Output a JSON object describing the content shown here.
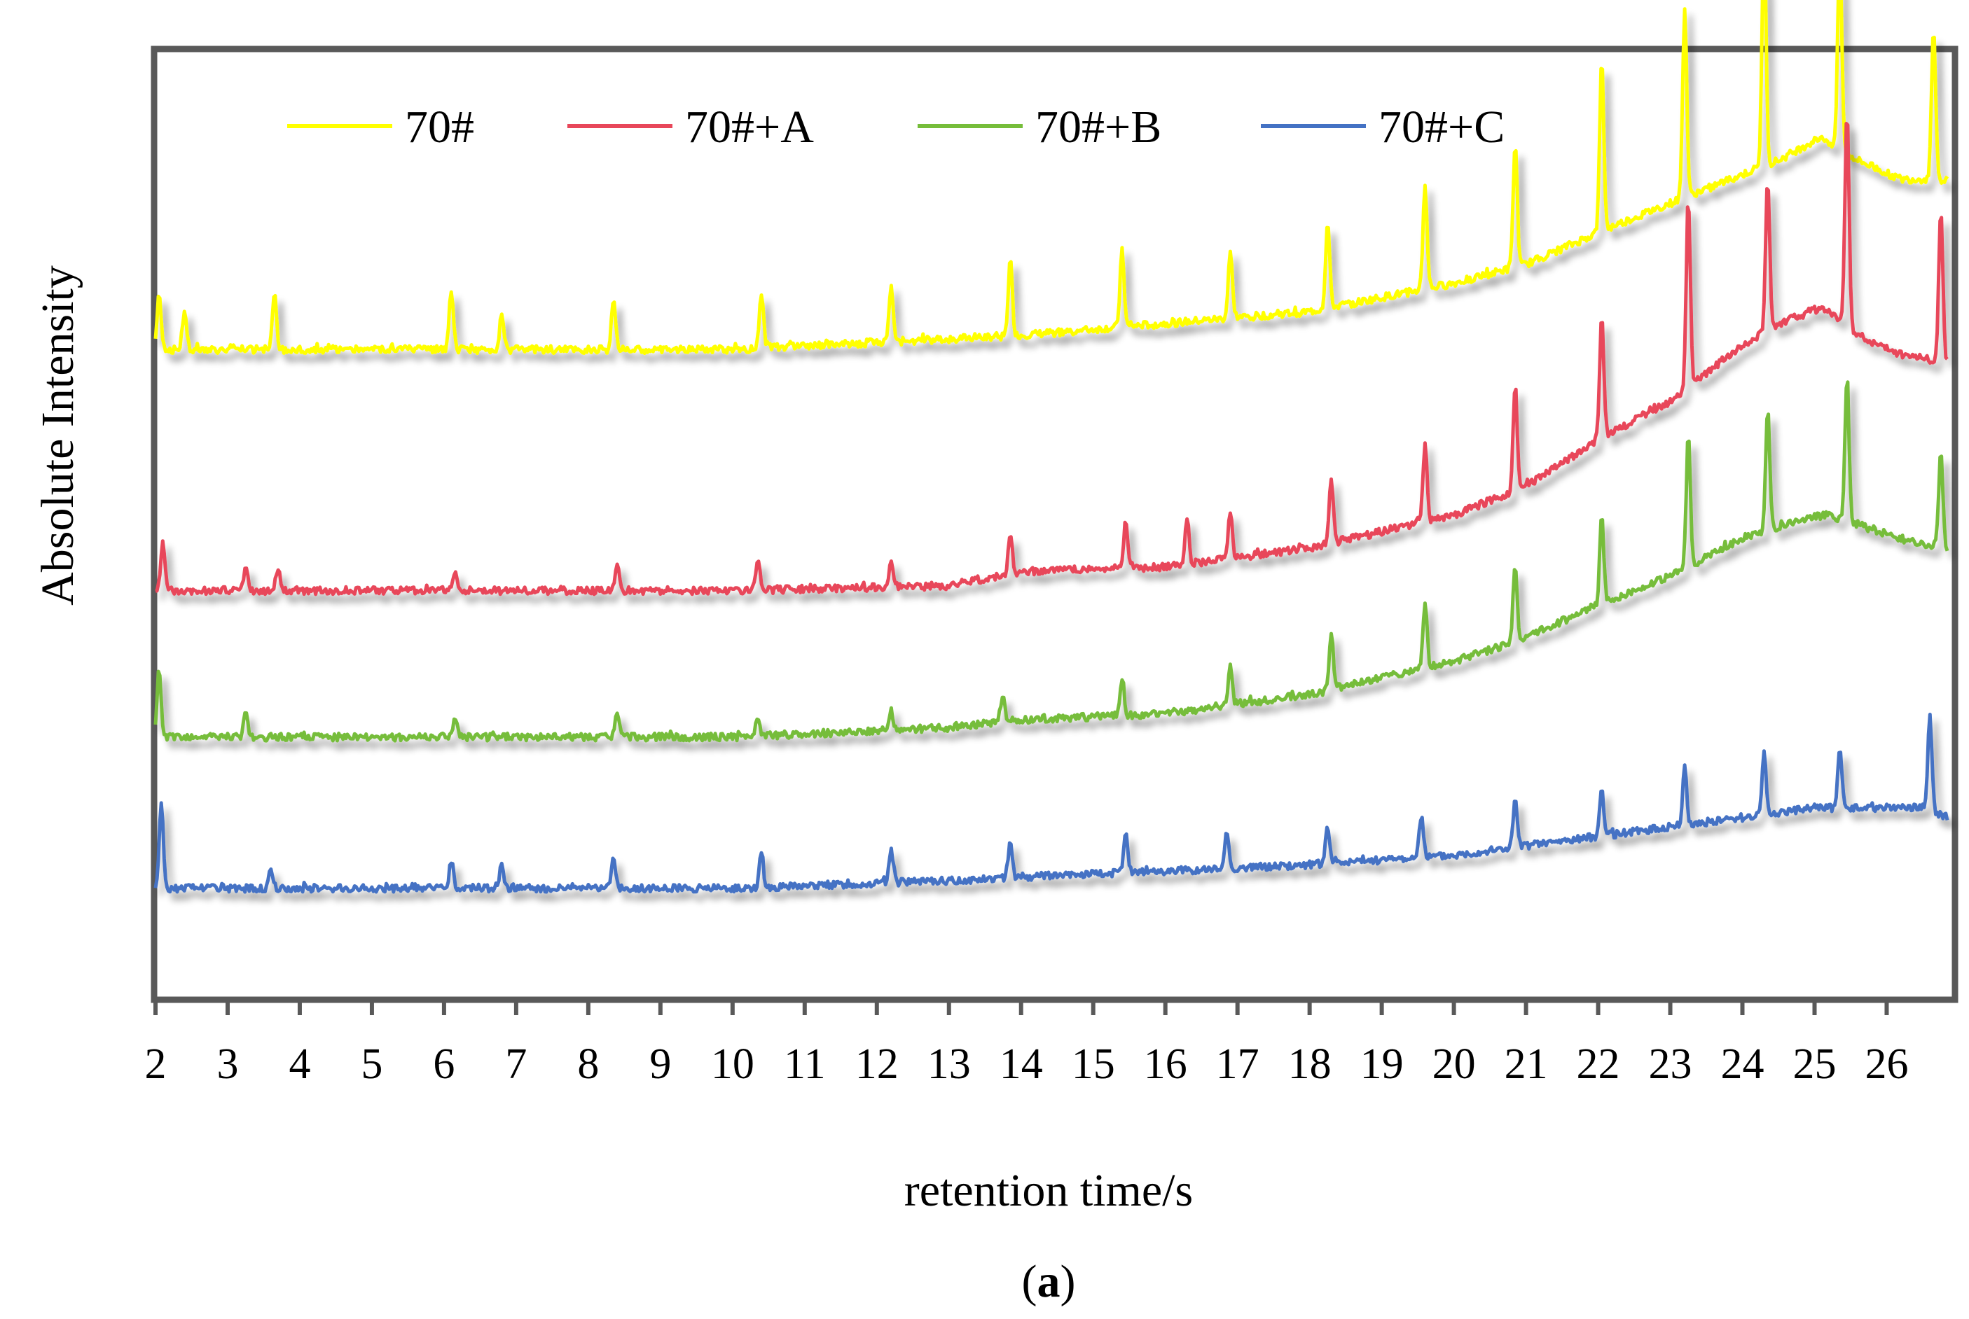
{
  "chart_data": {
    "type": "line",
    "title": "",
    "xlabel": "retention time/s",
    "ylabel": "Absolute Intensity",
    "panel_label": {
      "open": "(",
      "letter": "a",
      "close": ")"
    },
    "xlim": [
      2,
      26.85
    ],
    "ylim": [
      0,
      1
    ],
    "x_ticks": [
      2,
      3,
      4,
      5,
      6,
      7,
      8,
      9,
      10,
      11,
      12,
      13,
      14,
      15,
      16,
      17,
      18,
      19,
      20,
      21,
      22,
      23,
      24,
      25,
      26
    ],
    "x_tick_labels": [
      "2",
      "3",
      "4",
      "5",
      "6",
      "7",
      "8",
      "9",
      "10",
      "11",
      "12",
      "13",
      "14",
      "15",
      "16",
      "17",
      "18",
      "19",
      "20",
      "21",
      "22",
      "23",
      "24",
      "25",
      "26"
    ],
    "y_tick_labels_shown": false,
    "grid": false,
    "legend_position": "top",
    "series": [
      {
        "name": "70#",
        "color": "#ffff00",
        "offset": 0.685,
        "baseline": [
          [
            2,
            0.0
          ],
          [
            10,
            0.0
          ],
          [
            14,
            0.015
          ],
          [
            18,
            0.04
          ],
          [
            20,
            0.07
          ],
          [
            21,
            0.09
          ],
          [
            22.2,
            0.13
          ],
          [
            23.5,
            0.17
          ],
          [
            24.5,
            0.2
          ],
          [
            25.1,
            0.225
          ],
          [
            25.6,
            0.2
          ],
          [
            26.2,
            0.18
          ],
          [
            26.85,
            0.18
          ]
        ],
        "peaks": [
          [
            2.05,
            0.06
          ],
          [
            2.4,
            0.04
          ],
          [
            3.65,
            0.06
          ],
          [
            6.1,
            0.06
          ],
          [
            6.8,
            0.04
          ],
          [
            8.35,
            0.05
          ],
          [
            10.4,
            0.06
          ],
          [
            12.2,
            0.06
          ],
          [
            13.85,
            0.08
          ],
          [
            15.4,
            0.08
          ],
          [
            16.9,
            0.07
          ],
          [
            18.25,
            0.09
          ],
          [
            19.6,
            0.11
          ],
          [
            20.85,
            0.13
          ],
          [
            22.05,
            0.18
          ],
          [
            23.2,
            0.2
          ],
          [
            24.3,
            0.24
          ],
          [
            25.35,
            0.21
          ],
          [
            26.65,
            0.16
          ]
        ],
        "samples": [
          [
            2.0,
            0.7
          ],
          [
            2.1,
            0.686
          ],
          [
            2.3,
            0.692
          ],
          [
            2.5,
            0.695
          ],
          [
            2.8,
            0.69
          ],
          [
            3.1,
            0.69
          ],
          [
            3.4,
            0.688
          ],
          [
            3.8,
            0.688
          ],
          [
            4.5,
            0.685
          ],
          [
            6.0,
            0.686
          ],
          [
            8.0,
            0.686
          ],
          [
            10.0,
            0.686
          ],
          [
            12.0,
            0.69
          ],
          [
            13.6,
            0.697
          ],
          [
            15.0,
            0.702
          ],
          [
            16.5,
            0.711
          ],
          [
            18.0,
            0.724
          ],
          [
            19.5,
            0.742
          ],
          [
            20.5,
            0.752
          ],
          [
            21.5,
            0.77
          ],
          [
            22.2,
            0.812
          ],
          [
            23.5,
            0.855
          ],
          [
            24.5,
            0.883
          ],
          [
            25.1,
            0.91
          ],
          [
            25.6,
            0.887
          ],
          [
            26.2,
            0.865
          ],
          [
            26.85,
            0.865
          ]
        ]
      },
      {
        "name": "70#+A",
        "color": "#e8475a",
        "offset": 0.43,
        "baseline": [
          [
            2,
            0.0
          ],
          [
            10,
            0.0
          ],
          [
            13,
            0.005
          ],
          [
            14,
            0.02
          ],
          [
            16,
            0.025
          ],
          [
            18,
            0.045
          ],
          [
            20,
            0.08
          ],
          [
            21,
            0.11
          ],
          [
            22,
            0.16
          ],
          [
            23,
            0.2
          ],
          [
            24,
            0.26
          ],
          [
            24.6,
            0.285
          ],
          [
            25.1,
            0.3
          ],
          [
            25.6,
            0.27
          ],
          [
            26.2,
            0.25
          ],
          [
            26.85,
            0.24
          ]
        ],
        "peaks": [
          [
            2.1,
            0.05
          ],
          [
            3.25,
            0.025
          ],
          [
            3.7,
            0.025
          ],
          [
            6.15,
            0.02
          ],
          [
            8.4,
            0.03
          ],
          [
            10.35,
            0.03
          ],
          [
            12.2,
            0.03
          ],
          [
            13.85,
            0.04
          ],
          [
            15.45,
            0.05
          ],
          [
            16.3,
            0.05
          ],
          [
            16.9,
            0.05
          ],
          [
            18.3,
            0.07
          ],
          [
            19.6,
            0.08
          ],
          [
            20.85,
            0.11
          ],
          [
            22.05,
            0.13
          ],
          [
            23.25,
            0.2
          ],
          [
            24.35,
            0.16
          ],
          [
            25.45,
            0.23
          ],
          [
            26.75,
            0.16
          ]
        ],
        "samples": [
          [
            2.0,
            0.445
          ],
          [
            2.5,
            0.44
          ],
          [
            3.0,
            0.437
          ],
          [
            4.0,
            0.432
          ],
          [
            6.0,
            0.43
          ],
          [
            8.0,
            0.43
          ],
          [
            10.0,
            0.43
          ],
          [
            12.0,
            0.432
          ],
          [
            13.0,
            0.435
          ],
          [
            14.0,
            0.45
          ],
          [
            16.0,
            0.455
          ],
          [
            18.0,
            0.475
          ],
          [
            20.0,
            0.51
          ],
          [
            21.0,
            0.54
          ],
          [
            22.0,
            0.59
          ],
          [
            23.0,
            0.63
          ],
          [
            24.0,
            0.69
          ],
          [
            24.6,
            0.715
          ],
          [
            25.1,
            0.73
          ],
          [
            25.6,
            0.7
          ],
          [
            26.2,
            0.68
          ],
          [
            26.85,
            0.67
          ]
        ]
      },
      {
        "name": "70#+B",
        "color": "#76bd3a",
        "offset": 0.275,
        "baseline": [
          [
            2,
            0.0
          ],
          [
            10,
            0.0
          ],
          [
            13,
            0.01
          ],
          [
            14,
            0.018
          ],
          [
            16,
            0.025
          ],
          [
            18,
            0.045
          ],
          [
            20,
            0.08
          ],
          [
            21,
            0.105
          ],
          [
            22,
            0.14
          ],
          [
            23,
            0.17
          ],
          [
            24,
            0.21
          ],
          [
            24.8,
            0.23
          ],
          [
            25.2,
            0.235
          ],
          [
            25.8,
            0.22
          ],
          [
            26.4,
            0.205
          ],
          [
            26.85,
            0.2
          ]
        ],
        "peaks": [
          [
            2.05,
            0.07
          ],
          [
            3.25,
            0.025
          ],
          [
            6.15,
            0.02
          ],
          [
            8.4,
            0.025
          ],
          [
            10.35,
            0.02
          ],
          [
            12.2,
            0.02
          ],
          [
            13.75,
            0.03
          ],
          [
            15.4,
            0.04
          ],
          [
            16.9,
            0.04
          ],
          [
            18.3,
            0.06
          ],
          [
            19.6,
            0.07
          ],
          [
            20.85,
            0.08
          ],
          [
            22.05,
            0.09
          ],
          [
            23.25,
            0.14
          ],
          [
            24.35,
            0.13
          ],
          [
            25.45,
            0.15
          ],
          [
            26.75,
            0.1
          ]
        ],
        "samples": [
          [
            2.0,
            0.3
          ],
          [
            2.5,
            0.288
          ],
          [
            3.0,
            0.285
          ],
          [
            4.0,
            0.278
          ],
          [
            6.0,
            0.275
          ],
          [
            8.0,
            0.275
          ],
          [
            10.0,
            0.275
          ],
          [
            12.0,
            0.28
          ],
          [
            13.0,
            0.285
          ],
          [
            14.0,
            0.293
          ],
          [
            16.0,
            0.3
          ],
          [
            18.0,
            0.32
          ],
          [
            20.0,
            0.355
          ],
          [
            21.0,
            0.38
          ],
          [
            22.0,
            0.415
          ],
          [
            23.0,
            0.445
          ],
          [
            24.0,
            0.485
          ],
          [
            24.8,
            0.505
          ],
          [
            25.2,
            0.51
          ],
          [
            25.8,
            0.495
          ],
          [
            26.4,
            0.48
          ],
          [
            26.85,
            0.475
          ]
        ]
      },
      {
        "name": "70#+C",
        "color": "#4472c4",
        "offset": 0.115,
        "baseline": [
          [
            2,
            0.0
          ],
          [
            10,
            0.0
          ],
          [
            13,
            0.008
          ],
          [
            14,
            0.012
          ],
          [
            16,
            0.018
          ],
          [
            18,
            0.025
          ],
          [
            20,
            0.035
          ],
          [
            21,
            0.045
          ],
          [
            22,
            0.055
          ],
          [
            23,
            0.065
          ],
          [
            24,
            0.075
          ],
          [
            25,
            0.085
          ],
          [
            26,
            0.085
          ],
          [
            26.5,
            0.085
          ],
          [
            26.85,
            0.075
          ]
        ],
        "peaks": [
          [
            2.08,
            0.09
          ],
          [
            3.6,
            0.02
          ],
          [
            6.1,
            0.03
          ],
          [
            6.8,
            0.025
          ],
          [
            8.35,
            0.03
          ],
          [
            10.4,
            0.035
          ],
          [
            12.2,
            0.035
          ],
          [
            13.85,
            0.04
          ],
          [
            15.45,
            0.04
          ],
          [
            16.85,
            0.04
          ],
          [
            18.25,
            0.04
          ],
          [
            19.55,
            0.045
          ],
          [
            20.85,
            0.05
          ],
          [
            22.05,
            0.05
          ],
          [
            23.2,
            0.06
          ],
          [
            24.3,
            0.065
          ],
          [
            25.35,
            0.06
          ],
          [
            26.6,
            0.1
          ]
        ],
        "samples": [
          [
            2.0,
            0.125
          ],
          [
            2.5,
            0.12
          ],
          [
            3.0,
            0.118
          ],
          [
            4.0,
            0.116
          ],
          [
            6.0,
            0.115
          ],
          [
            8.0,
            0.115
          ],
          [
            10.0,
            0.115
          ],
          [
            12.0,
            0.118
          ],
          [
            13.0,
            0.123
          ],
          [
            14.0,
            0.127
          ],
          [
            16.0,
            0.133
          ],
          [
            18.0,
            0.14
          ],
          [
            20.0,
            0.15
          ],
          [
            21.0,
            0.16
          ],
          [
            22.0,
            0.17
          ],
          [
            23.0,
            0.18
          ],
          [
            24.0,
            0.19
          ],
          [
            25.0,
            0.2
          ],
          [
            26.0,
            0.2
          ],
          [
            26.5,
            0.2
          ],
          [
            26.85,
            0.19
          ]
        ]
      }
    ]
  }
}
